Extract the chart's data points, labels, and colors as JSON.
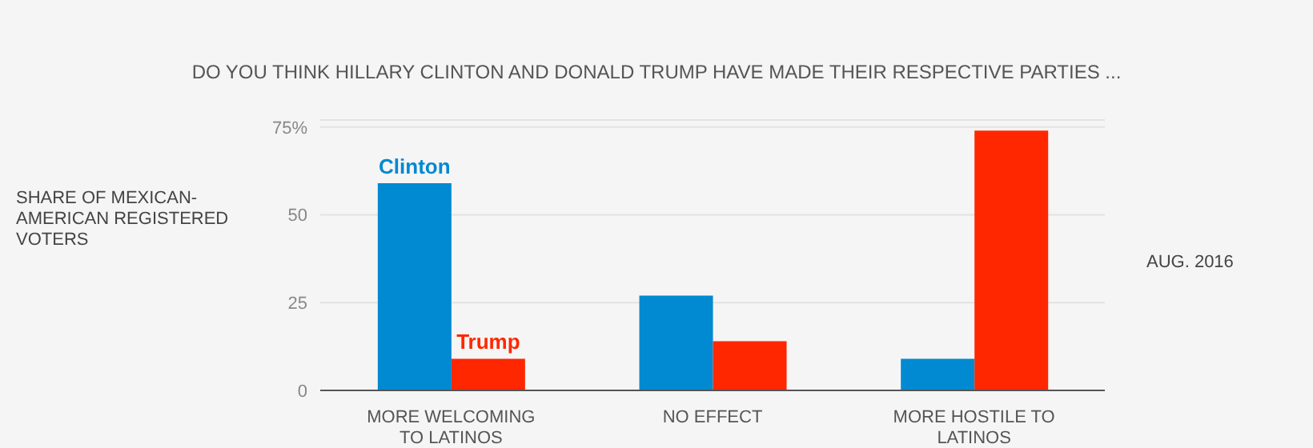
{
  "chart_data": {
    "type": "bar",
    "title": "DO YOU THINK HILLARY CLINTON AND DONALD TRUMP HAVE MADE THEIR RESPECTIVE PARTIES ...",
    "ylabel": "SHARE OF MEXICAN-AMERICAN REGISTERED VOTERS",
    "annotations": [
      "AUG. 2016"
    ],
    "categories": [
      "MORE WELCOMING TO LATINOS",
      "NO EFFECT",
      "MORE HOSTILE TO LATINOS"
    ],
    "series": [
      {
        "name": "Clinton",
        "color": "#0189d1",
        "values": [
          59,
          27,
          9
        ]
      },
      {
        "name": "Trump",
        "color": "#ff2700",
        "values": [
          9,
          14,
          74
        ]
      }
    ],
    "ylim": [
      0,
      77
    ],
    "yticks": [
      0,
      25,
      50,
      {
        "value": 75,
        "label": "75%"
      }
    ],
    "grid": "y"
  }
}
